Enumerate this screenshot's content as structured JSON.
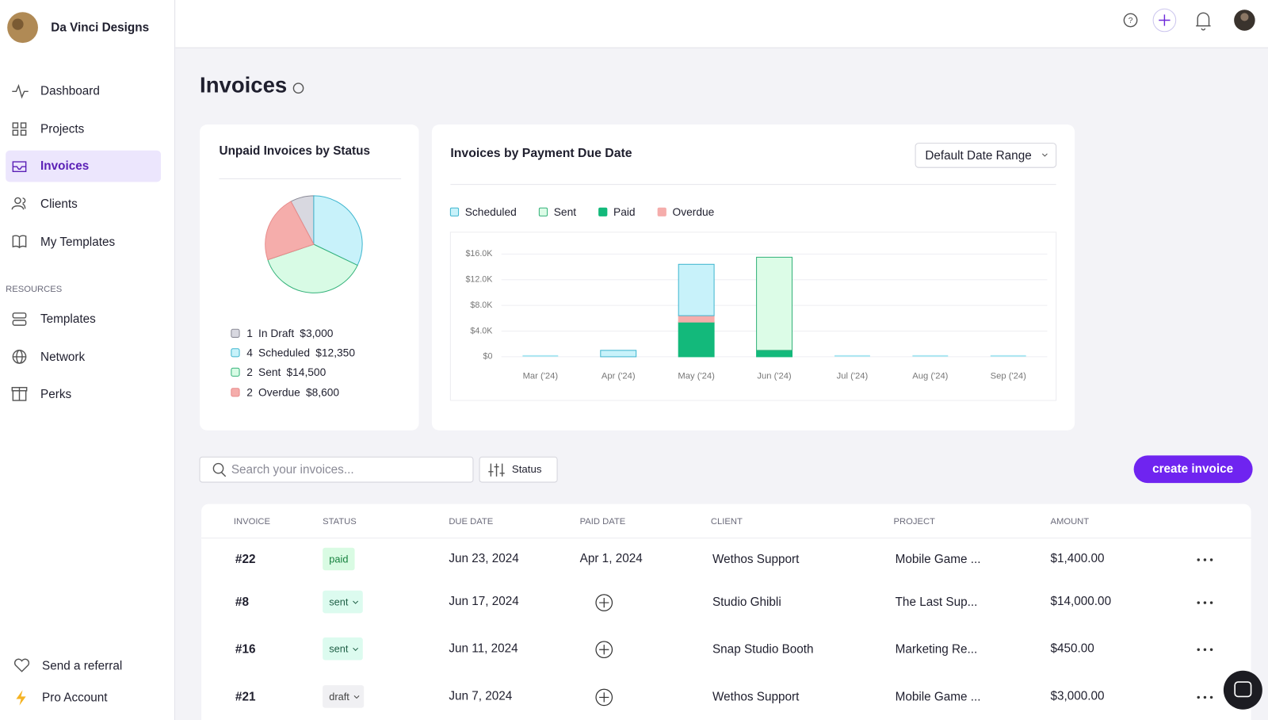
{
  "sidebar": {
    "brand": "Da Vinci Designs",
    "nav": [
      "Dashboard",
      "Projects",
      "Invoices",
      "Clients",
      "My Templates"
    ],
    "section": "RESOURCES",
    "resources": [
      "Templates",
      "Network",
      "Perks"
    ],
    "footer": [
      "Send a referral",
      "Pro Account"
    ]
  },
  "header": {
    "title": "Invoices"
  },
  "date_range": "Default Date Range",
  "search_placeholder": "Search your invoices...",
  "filter": "Status",
  "create_button": "create invoice",
  "chart_data": [
    {
      "type": "pie",
      "title": "Unpaid Invoices by Status",
      "categories": [
        "In Draft",
        "Scheduled",
        "Sent",
        "Overdue"
      ],
      "counts": [
        1,
        4,
        2,
        2
      ],
      "values": [
        3000,
        12350,
        14500,
        8600
      ],
      "value_labels": [
        "$3,000",
        "$12,350",
        "$14,500",
        "$8,600"
      ],
      "colors": [
        "#d8d8e0",
        "#c8f2fa",
        "#d8fbe5",
        "#f5adab"
      ],
      "strokes": [
        "#8a8a96",
        "#3fb6cf",
        "#34b27a",
        "#e88b8b"
      ]
    },
    {
      "type": "bar",
      "stacked": true,
      "title": "Invoices by Payment Due Date",
      "categories": [
        "Mar ('24)",
        "Apr ('24)",
        "May ('24)",
        "Jun ('24)",
        "Jul ('24)",
        "Aug ('24)",
        "Sep ('24)"
      ],
      "series": [
        {
          "name": "Scheduled",
          "color": "#c8f2fa",
          "stroke": "#3fb6cf",
          "values": [
            0,
            1000,
            8000,
            0,
            0,
            0,
            0
          ]
        },
        {
          "name": "Sent",
          "color": "#dcfce7",
          "stroke": "#34b27a",
          "values": [
            0,
            0,
            0,
            14500,
            0,
            0,
            0
          ]
        },
        {
          "name": "Paid",
          "color": "#13b97b",
          "stroke": "#13b97b",
          "values": [
            0,
            0,
            5400,
            1000,
            0,
            0,
            0
          ]
        },
        {
          "name": "Overdue",
          "color": "#f5adab",
          "stroke": "#f5adab",
          "values": [
            0,
            0,
            1000,
            0,
            0,
            0,
            0
          ]
        }
      ],
      "ylim": [
        0,
        16000
      ],
      "yticks": [
        {
          "value": 0,
          "label": "$0"
        },
        {
          "value": 4000,
          "label": "$4.0K"
        },
        {
          "value": 8000,
          "label": "$8.0K"
        },
        {
          "value": 12000,
          "label": "$12.0K"
        },
        {
          "value": 16000,
          "label": "$16.0K"
        }
      ],
      "grid": true
    }
  ],
  "table": {
    "columns": [
      "INVOICE",
      "STATUS",
      "DUE DATE",
      "PAID DATE",
      "CLIENT",
      "PROJECT",
      "AMOUNT"
    ],
    "rows": [
      [
        "#22",
        "paid",
        "Jun 23, 2024",
        "Apr 1, 2024",
        "Wethos Support",
        "Mobile Game ...",
        "$1,400.00"
      ],
      [
        "#8",
        "sent",
        "Jun 17, 2024",
        null,
        "Studio Ghibli",
        "The Last Sup...",
        "$14,000.00"
      ],
      [
        "#16",
        "sent",
        "Jun 11, 2024",
        null,
        "Snap Studio Booth",
        "Marketing Re...",
        "$450.00"
      ],
      [
        "#21",
        "draft",
        "Jun 7, 2024",
        null,
        "Wethos Support",
        "Mobile Game ...",
        "$3,000.00"
      ]
    ]
  }
}
